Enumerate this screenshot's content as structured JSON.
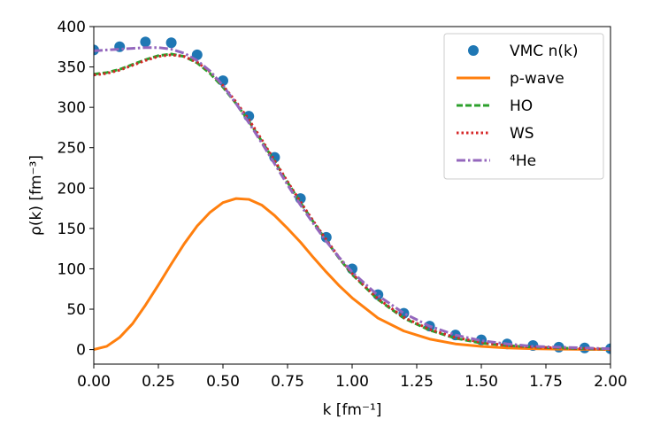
{
  "chart_data": {
    "type": "line",
    "title": "",
    "xlabel": "k [fm⁻¹]",
    "ylabel": "ρ(k) [fm⁻³]",
    "xlim": [
      0.0,
      2.0
    ],
    "ylim": [
      -18,
      400
    ],
    "x_ticks": [
      0.0,
      0.25,
      0.5,
      0.75,
      1.0,
      1.25,
      1.5,
      1.75,
      2.0
    ],
    "x_tick_labels": [
      "0.00",
      "0.25",
      "0.50",
      "0.75",
      "1.00",
      "1.25",
      "1.50",
      "1.75",
      "2.00"
    ],
    "y_ticks": [
      0,
      50,
      100,
      150,
      200,
      250,
      300,
      350,
      400
    ],
    "y_tick_labels": [
      "0",
      "50",
      "100",
      "150",
      "200",
      "250",
      "300",
      "350",
      "400"
    ],
    "legend_position": "top-right",
    "series": [
      {
        "name": "VMC n(k)",
        "style": "markers",
        "color": "#1f77b4",
        "x": [
          0.0,
          0.1,
          0.2,
          0.3,
          0.4,
          0.5,
          0.6,
          0.7,
          0.8,
          0.9,
          1.0,
          1.1,
          1.2,
          1.3,
          1.4,
          1.5,
          1.6,
          1.7,
          1.8,
          1.9,
          2.0
        ],
        "y": [
          371,
          375,
          381,
          380,
          365,
          333,
          289,
          238,
          187,
          139,
          100,
          68,
          45,
          29,
          18,
          12,
          7,
          5,
          3,
          2,
          1
        ]
      },
      {
        "name": "p-wave",
        "style": "solid",
        "color": "#ff7f0e",
        "x": [
          0.0,
          0.05,
          0.1,
          0.15,
          0.2,
          0.25,
          0.3,
          0.35,
          0.4,
          0.45,
          0.5,
          0.55,
          0.6,
          0.65,
          0.7,
          0.75,
          0.8,
          0.85,
          0.9,
          0.95,
          1.0,
          1.1,
          1.2,
          1.3,
          1.4,
          1.5,
          1.6,
          1.7,
          1.8,
          1.9,
          2.0
        ],
        "y": [
          0,
          4,
          15,
          32,
          55,
          80,
          106,
          131,
          153,
          170,
          182,
          187,
          186,
          179,
          166,
          150,
          133,
          114,
          96,
          79,
          64,
          39,
          23,
          13,
          7,
          4,
          2,
          1,
          0.5,
          0.3,
          0.1
        ]
      },
      {
        "name": "HO",
        "style": "dashed",
        "color": "#2ca02c",
        "x": [
          0.0,
          0.05,
          0.1,
          0.15,
          0.2,
          0.25,
          0.3,
          0.35,
          0.4,
          0.45,
          0.5,
          0.55,
          0.6,
          0.65,
          0.7,
          0.75,
          0.8,
          0.85,
          0.9,
          0.95,
          1.0,
          1.1,
          1.2,
          1.3,
          1.4,
          1.5,
          1.6,
          1.7,
          1.8,
          1.9,
          2.0
        ],
        "y": [
          341,
          343,
          347,
          353,
          359,
          364,
          366,
          363,
          355,
          342,
          325,
          305,
          283,
          258,
          233,
          207,
          182,
          158,
          135,
          113,
          93,
          62,
          39,
          24,
          14,
          8,
          5,
          3,
          2,
          1,
          0.5
        ]
      },
      {
        "name": "WS",
        "style": "dotted",
        "color": "#d62728",
        "x": [
          0.0,
          0.05,
          0.1,
          0.15,
          0.2,
          0.25,
          0.3,
          0.35,
          0.4,
          0.45,
          0.5,
          0.55,
          0.6,
          0.65,
          0.7,
          0.75,
          0.8,
          0.85,
          0.9,
          0.95,
          1.0,
          1.1,
          1.2,
          1.3,
          1.4,
          1.5,
          1.6,
          1.7,
          1.8,
          1.9,
          2.0
        ],
        "y": [
          340,
          342,
          346,
          352,
          358,
          363,
          365,
          363,
          356,
          344,
          327,
          307,
          285,
          260,
          234,
          208,
          183,
          159,
          136,
          114,
          94,
          63,
          40,
          25,
          15,
          9,
          5,
          3,
          2,
          1,
          0.5
        ]
      },
      {
        "name": "⁴He",
        "style": "dashdot",
        "color": "#9467bd",
        "x": [
          0.0,
          0.05,
          0.1,
          0.15,
          0.2,
          0.25,
          0.3,
          0.35,
          0.4,
          0.45,
          0.5,
          0.55,
          0.6,
          0.65,
          0.7,
          0.75,
          0.8,
          0.85,
          0.9,
          0.95,
          1.0,
          1.1,
          1.2,
          1.3,
          1.4,
          1.5,
          1.6,
          1.7,
          1.8,
          1.9,
          2.0
        ],
        "y": [
          370,
          371,
          372,
          373,
          374,
          374,
          372,
          367,
          358,
          345,
          327,
          305,
          281,
          256,
          230,
          204,
          179,
          156,
          134,
          114,
          96,
          67,
          45,
          29,
          18,
          11,
          7,
          4,
          3,
          2,
          1
        ]
      }
    ]
  }
}
